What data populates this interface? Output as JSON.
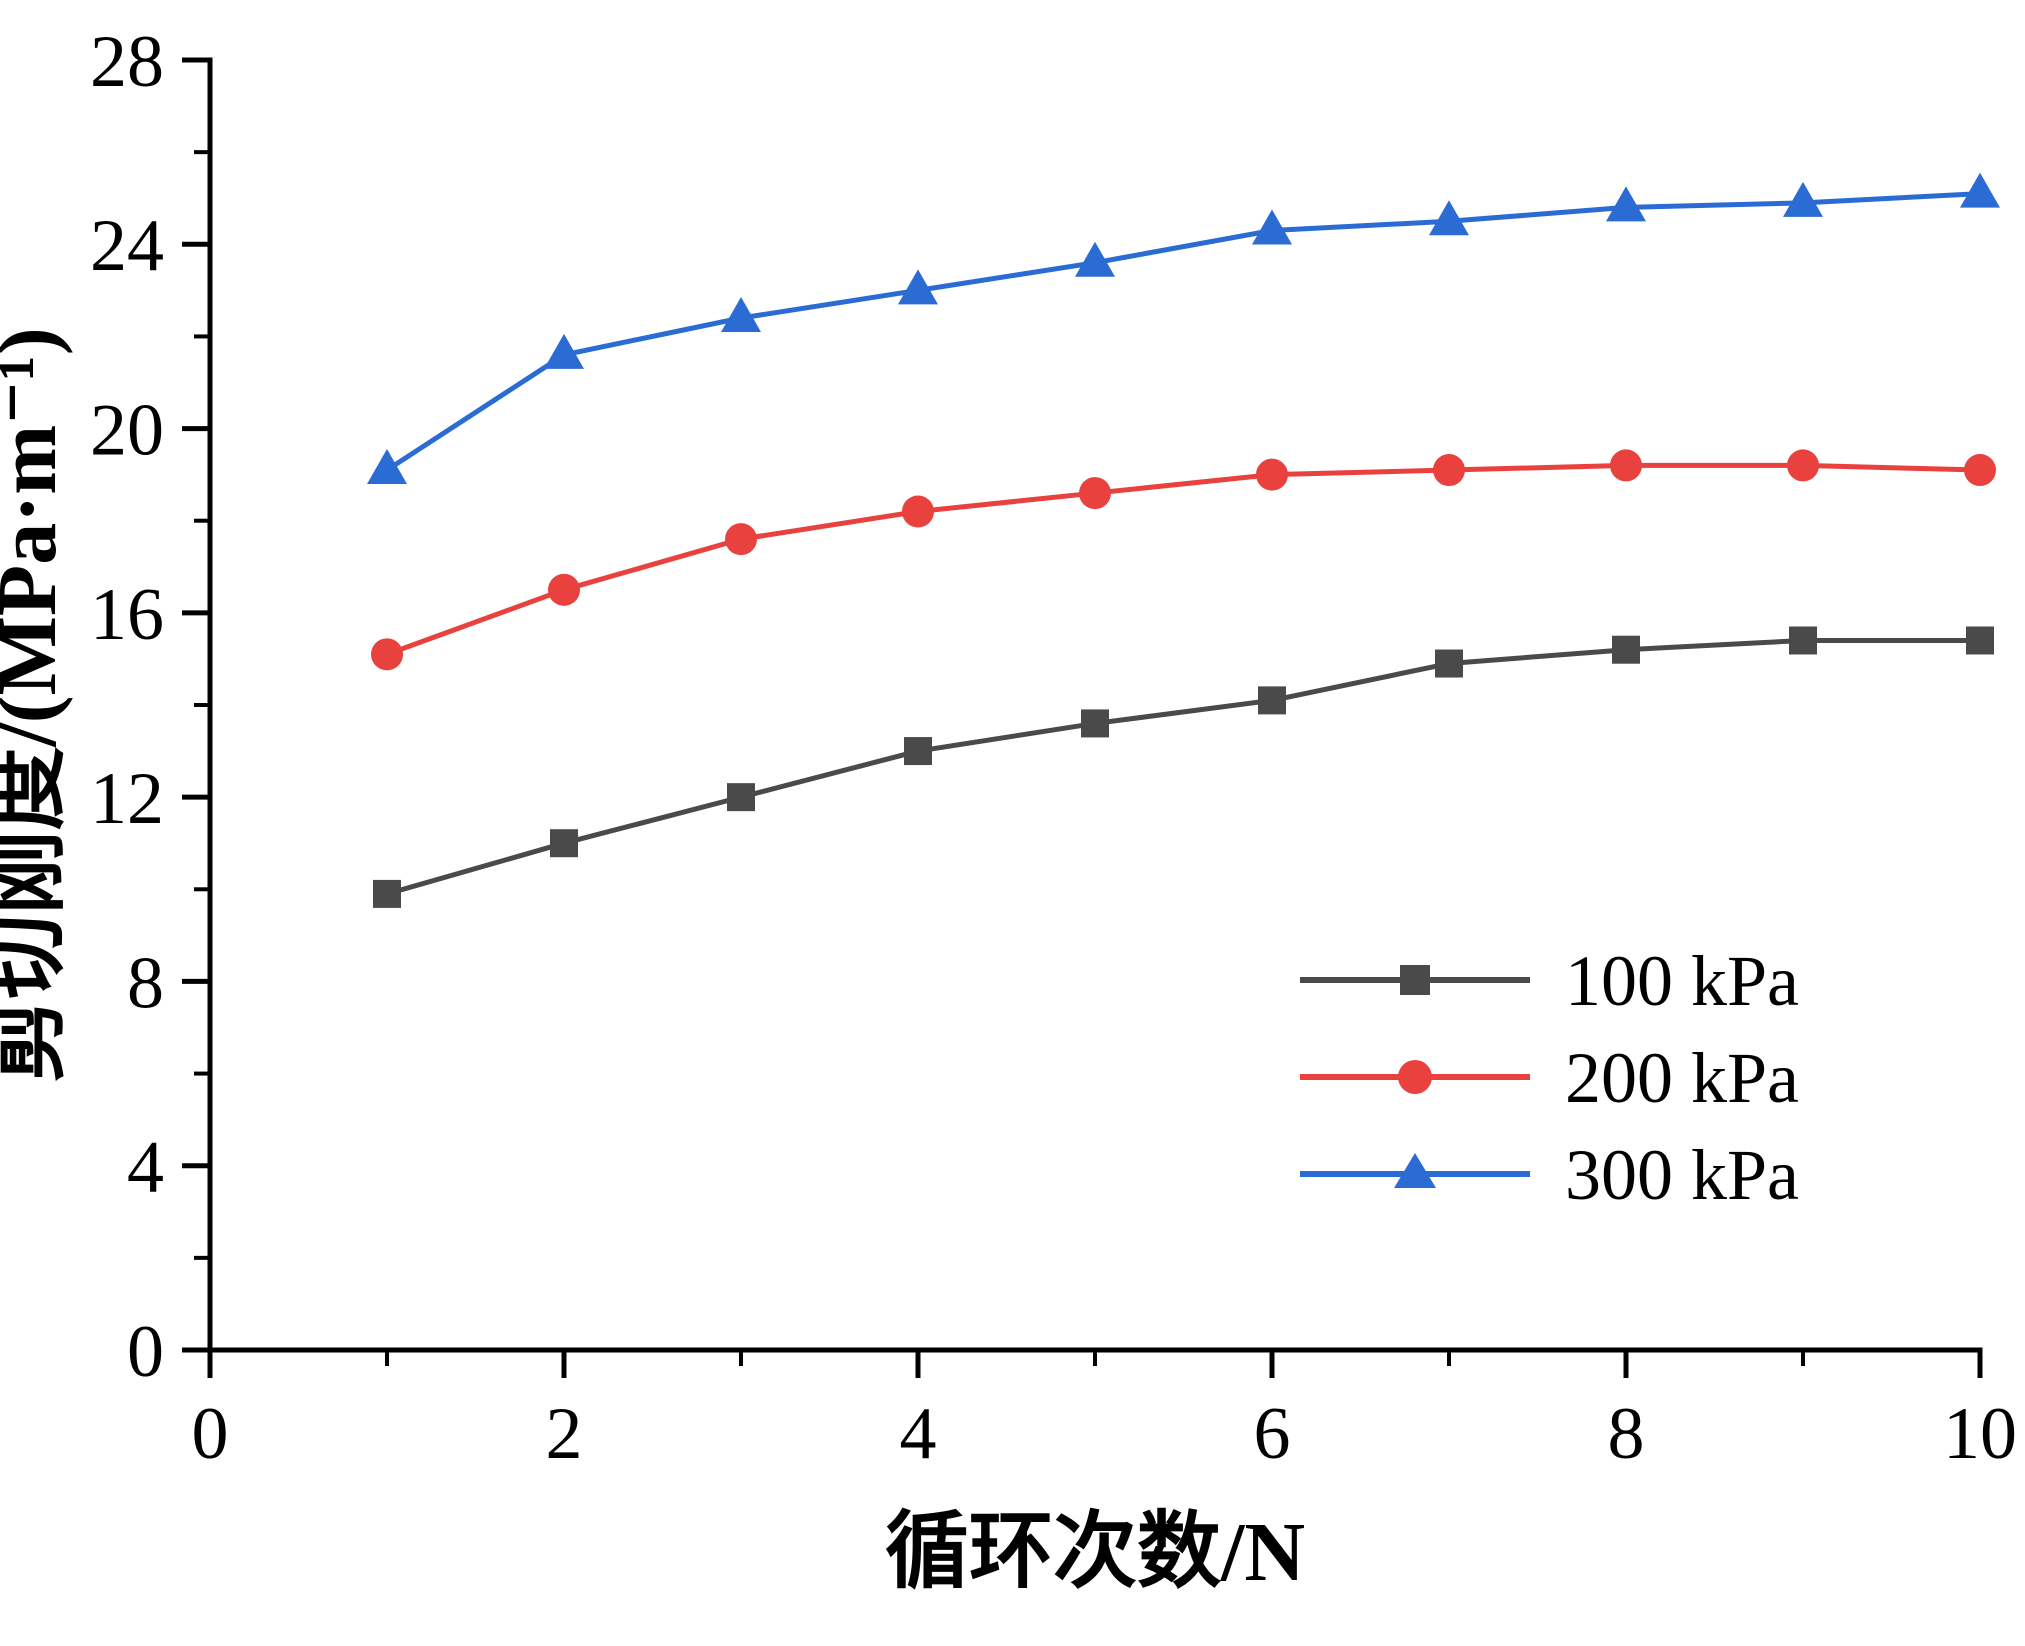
{
  "figure": {
    "background": "#ffffff",
    "axis_color": "#000000"
  },
  "chart_data": {
    "type": "line",
    "title": "",
    "xlabel": "循环次数/N",
    "ylabel": "剪切刚度/(MPa·m⁻¹)",
    "xlim": [
      0,
      10
    ],
    "ylim": [
      0,
      28
    ],
    "x_major_ticks": [
      0,
      2,
      4,
      6,
      8,
      10
    ],
    "x_minor_step": 1,
    "y_major_ticks": [
      0,
      4,
      8,
      12,
      16,
      20,
      24,
      28
    ],
    "y_minor_step": 2,
    "grid": false,
    "legend_position": "lower right",
    "x": [
      1,
      2,
      3,
      4,
      5,
      6,
      7,
      8,
      9,
      10
    ],
    "series": [
      {
        "name": "100 kPa",
        "color": "#4a4a4a",
        "marker": "square",
        "values": [
          9.9,
          11.0,
          12.0,
          13.0,
          13.6,
          14.1,
          14.9,
          15.2,
          15.4,
          15.4
        ]
      },
      {
        "name": "200 kPa",
        "color": "#e8413e",
        "marker": "circle",
        "values": [
          15.1,
          16.5,
          17.6,
          18.2,
          18.6,
          19.0,
          19.1,
          19.2,
          19.2,
          19.1
        ]
      },
      {
        "name": "300 kPa",
        "color": "#2b6cd4",
        "marker": "triangle",
        "values": [
          19.1,
          21.6,
          22.4,
          23.0,
          23.6,
          24.3,
          24.5,
          24.8,
          24.9,
          25.1
        ]
      }
    ]
  }
}
